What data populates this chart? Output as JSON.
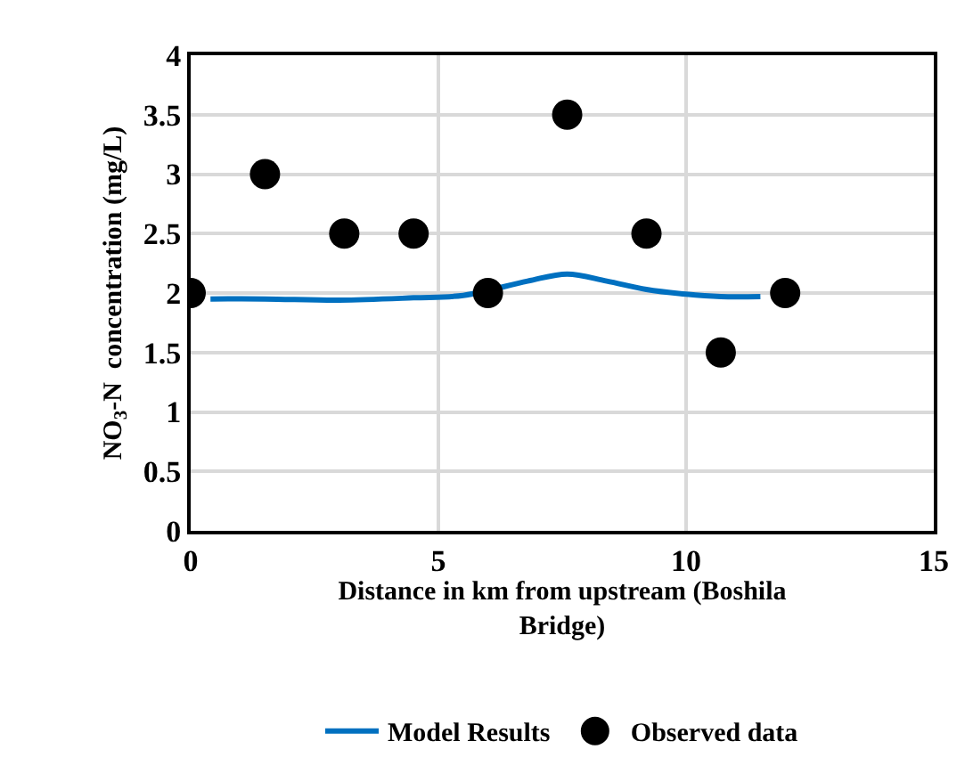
{
  "chart_data": {
    "type": "scatter",
    "xlabel": "Distance in km from upstream (Boshila\nBridge)",
    "ylabel": "NO$_{3}$-N  concentration (mg/L)",
    "series": [
      {
        "name": "Model Results",
        "type": "line",
        "color": "#0070c0",
        "marker": "none",
        "x": [
          0.4,
          1.5,
          3,
          4.5,
          5.5,
          6.8,
          7.6,
          8.4,
          9.2,
          10,
          10.7,
          11.5
        ],
        "values": [
          1.95,
          1.95,
          1.94,
          1.96,
          1.98,
          2.1,
          2.16,
          2.1,
          2.03,
          1.99,
          1.97,
          1.97
        ]
      },
      {
        "name": "Observed data",
        "color": "#000000",
        "marker": "circle",
        "x": [
          0,
          1.5,
          3.1,
          4.5,
          6,
          7.6,
          9.2,
          10.7,
          12
        ],
        "values": [
          2,
          3,
          2.5,
          2.5,
          2,
          3.5,
          2.5,
          1.5,
          2
        ]
      }
    ],
    "xlim": [
      0,
      15
    ],
    "xticks": [
      0,
      5,
      10,
      15
    ],
    "ylim": [
      0,
      4
    ],
    "yticks": [
      0,
      0.5,
      1,
      1.5,
      2,
      2.5,
      3,
      3.5,
      4
    ],
    "grid": true,
    "legend": "bottom"
  }
}
